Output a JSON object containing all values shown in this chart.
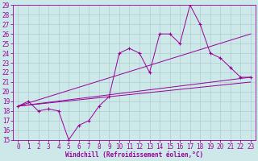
{
  "xlabel": "Windchill (Refroidissement éolien,°C)",
  "background_color": "#cce8e8",
  "line_color": "#990099",
  "grid_color": "#b0cece",
  "xlim": [
    -0.5,
    23.5
  ],
  "ylim": [
    15,
    29
  ],
  "xticks": [
    0,
    1,
    2,
    3,
    4,
    5,
    6,
    7,
    8,
    9,
    10,
    11,
    12,
    13,
    14,
    15,
    16,
    17,
    18,
    19,
    20,
    21,
    22,
    23
  ],
  "yticks": [
    15,
    16,
    17,
    18,
    19,
    20,
    21,
    22,
    23,
    24,
    25,
    26,
    27,
    28,
    29
  ],
  "series1_x": [
    0,
    1,
    2,
    3,
    4,
    5,
    6,
    7,
    8,
    9,
    10,
    11,
    12,
    13,
    14,
    15,
    16,
    17,
    18,
    19,
    20,
    21,
    22,
    23
  ],
  "series1_y": [
    18.5,
    19.0,
    18.0,
    18.2,
    18.0,
    15.0,
    16.5,
    17.0,
    18.5,
    19.5,
    24.0,
    24.5,
    24.0,
    22.0,
    26.0,
    26.0,
    25.0,
    29.0,
    27.0,
    24.0,
    23.5,
    22.5,
    21.5,
    21.5
  ],
  "trend_lines": [
    {
      "x0": 0,
      "y0": 18.5,
      "x1": 23,
      "y1": 21.5
    },
    {
      "x0": 0,
      "y0": 18.5,
      "x1": 23,
      "y1": 21.0
    },
    {
      "x0": 0,
      "y0": 18.5,
      "x1": 23,
      "y1": 26.0
    }
  ],
  "tick_fontsize": 5.5,
  "xlabel_fontsize": 5.5
}
